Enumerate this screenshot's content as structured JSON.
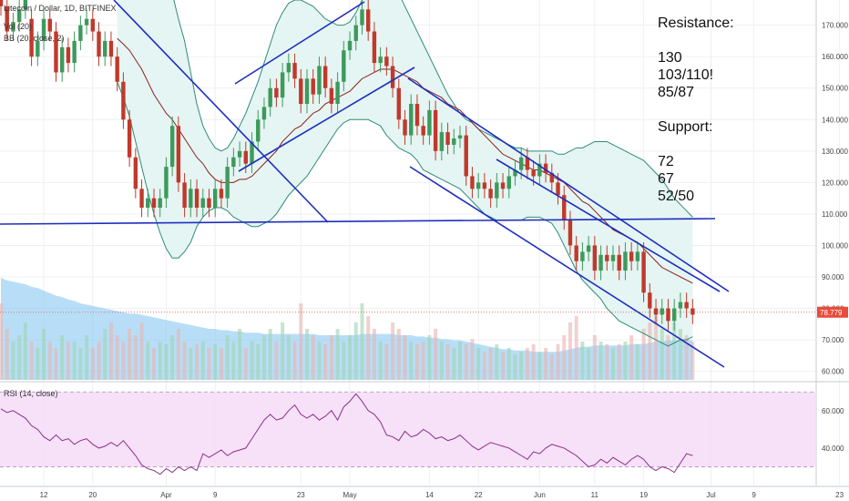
{
  "header": {
    "symbol_line": "Litecoin / Dollar, 1D, BITFINEX",
    "vol_label": "Vol (20)",
    "bb_label": "BB (20, close, 2)",
    "rsi_label": "RSI (14, close)"
  },
  "annotations": {
    "lines": [
      "Resistance:",
      "",
      "130",
      "103/110!",
      "85/87",
      "",
      "Support:",
      "",
      "72",
      "67",
      "52/50"
    ]
  },
  "colors": {
    "up": "#3d9a5c",
    "down": "#c0392b",
    "trendline": "#1f2fbf",
    "bb_band": "#2e8b7a",
    "bb_fill": "#e2f4f2",
    "sma": "#8b2020",
    "volume": "#7ec3f0",
    "rsi_line": "#8b2f8b",
    "rsi_fill": "#f5dcf7",
    "price_tag": "#e74c3c"
  },
  "chart_data": {
    "type": "candlestick",
    "price_axis": {
      "ticks": [
        60,
        70,
        80,
        90,
        100,
        110,
        120,
        130,
        140,
        150,
        160,
        170
      ],
      "tick_labels": [
        "60.000",
        "70.000",
        "80.000",
        "90.000",
        "100.000",
        "110.000",
        "120.000",
        "130.000",
        "140.000",
        "150.000",
        "160.000",
        "170.000"
      ],
      "range": [
        57,
        178
      ]
    },
    "current_price": 78.779,
    "current_price_label": "78.779",
    "x_labels": [
      {
        "day": 7,
        "text": "12"
      },
      {
        "day": 15,
        "text": "20"
      },
      {
        "day": 27,
        "text": "Apr"
      },
      {
        "day": 35,
        "text": "9"
      },
      {
        "day": 49,
        "text": "23"
      },
      {
        "day": 57,
        "text": "May"
      },
      {
        "day": 70,
        "text": "14"
      },
      {
        "day": 78,
        "text": "22"
      },
      {
        "day": 88,
        "text": "Jun"
      },
      {
        "day": 97,
        "text": "11"
      },
      {
        "day": 105,
        "text": "19"
      },
      {
        "day": 116,
        "text": "Jul"
      },
      {
        "day": 123,
        "text": "9"
      },
      {
        "day": 137,
        "text": "23"
      }
    ],
    "closes": [
      176,
      168,
      171,
      175,
      178,
      160,
      165,
      172,
      168,
      155,
      163,
      158,
      165,
      170,
      172,
      168,
      160,
      165,
      160,
      152,
      140,
      128,
      118,
      112,
      115,
      112,
      115,
      125,
      138,
      120,
      112,
      118,
      112,
      115,
      112,
      118,
      115,
      125,
      128,
      130,
      126,
      133,
      140,
      144,
      150,
      147,
      155,
      158,
      153,
      145,
      153,
      148,
      157,
      150,
      145,
      152,
      162,
      165,
      170,
      175,
      168,
      158,
      160,
      157,
      150,
      140,
      135,
      145,
      138,
      135,
      143,
      130,
      136,
      132,
      134,
      135,
      122,
      118,
      120,
      118,
      115,
      120,
      118,
      122,
      124,
      128,
      124,
      122,
      126,
      123,
      120,
      116,
      108,
      100,
      95,
      98,
      100,
      92,
      97,
      95,
      97,
      92,
      98,
      95,
      98,
      85,
      80,
      78,
      80,
      76,
      80,
      82,
      80,
      78
    ],
    "opens": [
      178,
      176,
      168,
      171,
      175,
      172,
      160,
      165,
      172,
      168,
      155,
      163,
      158,
      165,
      170,
      172,
      168,
      160,
      165,
      160,
      152,
      140,
      128,
      118,
      112,
      115,
      112,
      115,
      125,
      138,
      120,
      112,
      118,
      112,
      115,
      112,
      118,
      115,
      125,
      128,
      130,
      126,
      133,
      140,
      144,
      150,
      147,
      155,
      158,
      153,
      145,
      153,
      148,
      157,
      150,
      145,
      152,
      162,
      165,
      170,
      175,
      168,
      158,
      160,
      157,
      150,
      140,
      135,
      145,
      138,
      135,
      143,
      130,
      136,
      132,
      134,
      135,
      122,
      118,
      120,
      118,
      115,
      120,
      118,
      122,
      124,
      128,
      124,
      122,
      126,
      123,
      120,
      116,
      108,
      100,
      95,
      98,
      100,
      92,
      97,
      95,
      97,
      92,
      98,
      95,
      98,
      85,
      80,
      78,
      80,
      76,
      80,
      82,
      80
    ],
    "volumes": [
      60,
      40,
      30,
      35,
      45,
      30,
      25,
      40,
      30,
      25,
      35,
      30,
      30,
      25,
      35,
      25,
      30,
      40,
      45,
      35,
      30,
      40,
      35,
      45,
      30,
      25,
      30,
      28,
      35,
      40,
      30,
      25,
      28,
      30,
      25,
      28,
      25,
      35,
      30,
      40,
      25,
      30,
      28,
      35,
      40,
      30,
      45,
      35,
      30,
      60,
      40,
      35,
      30,
      28,
      35,
      40,
      30,
      35,
      45,
      60,
      50,
      40,
      30,
      28,
      45,
      40,
      35,
      30,
      28,
      30,
      35,
      40,
      30,
      28,
      25,
      30,
      28,
      32,
      25,
      22,
      25,
      28,
      22,
      25,
      20,
      22,
      25,
      28,
      22,
      25,
      20,
      28,
      35,
      45,
      50,
      30,
      25,
      35,
      30,
      28,
      25,
      28,
      30,
      35,
      28,
      40,
      45,
      50,
      40,
      35,
      45,
      40,
      35,
      30
    ],
    "sma20": [
      null,
      null,
      null,
      null,
      null,
      null,
      null,
      null,
      null,
      null,
      null,
      null,
      null,
      null,
      null,
      null,
      null,
      null,
      null,
      165.8,
      164,
      162,
      159,
      156,
      152,
      148,
      145,
      142,
      140,
      137,
      134,
      131,
      128,
      126,
      123,
      121,
      120,
      120,
      120,
      121,
      121,
      122,
      124,
      126,
      128,
      130,
      133,
      135,
      137,
      138,
      140,
      142,
      143,
      145,
      146,
      147,
      148,
      149,
      151,
      153,
      154,
      155,
      156,
      156,
      156,
      155,
      154,
      153,
      152,
      150,
      149,
      148,
      147,
      145,
      144,
      143,
      141,
      139,
      137,
      135,
      133,
      131,
      129,
      128,
      127,
      126,
      125,
      124,
      124,
      123,
      122,
      121,
      120,
      118,
      116,
      114,
      113,
      111,
      109,
      107,
      105,
      104,
      103,
      102,
      101,
      99,
      97,
      95,
      93,
      92,
      91,
      90,
      89,
      88
    ],
    "bb_upper": [
      null,
      null,
      null,
      null,
      null,
      null,
      null,
      null,
      null,
      null,
      null,
      null,
      null,
      null,
      null,
      null,
      null,
      null,
      null,
      180,
      181,
      183,
      185,
      187,
      188,
      188,
      187,
      185,
      180,
      172,
      165,
      155,
      145,
      138,
      134,
      131,
      130,
      131,
      134,
      138,
      142,
      147,
      152,
      158,
      164,
      170,
      174,
      177,
      178,
      178,
      177,
      176,
      174,
      172,
      171,
      170,
      170,
      171,
      174,
      178,
      181,
      183,
      184,
      184,
      183,
      180,
      176,
      172,
      168,
      164,
      160,
      156,
      152,
      148,
      145,
      142,
      140,
      139,
      137,
      136,
      135,
      134,
      133,
      132,
      131,
      131,
      130,
      130,
      130,
      130,
      130,
      129,
      129,
      130,
      131,
      131,
      132,
      133,
      133,
      133,
      132,
      131,
      130,
      129,
      128,
      127,
      125,
      123,
      121,
      118,
      115,
      113,
      111,
      109
    ],
    "bb_lower": [
      null,
      null,
      null,
      null,
      null,
      null,
      null,
      null,
      null,
      null,
      null,
      null,
      null,
      null,
      null,
      null,
      null,
      null,
      null,
      152,
      147,
      141,
      133,
      125,
      117,
      110,
      104,
      99,
      96,
      96,
      98,
      101,
      106,
      109,
      111,
      112,
      112,
      111,
      109,
      108,
      107,
      106,
      106,
      107,
      108,
      110,
      113,
      116,
      118,
      120,
      122,
      125,
      128,
      131,
      134,
      137,
      139,
      140,
      140,
      140,
      140,
      139,
      138,
      135,
      133,
      131,
      130,
      129,
      127,
      124,
      123,
      122,
      121,
      120,
      119,
      118,
      116,
      114,
      112,
      110,
      109,
      108,
      108,
      108,
      108,
      108,
      109,
      109,
      109,
      108,
      107,
      104,
      100,
      96,
      92,
      89,
      87,
      85,
      83,
      80,
      78,
      76,
      75,
      74,
      73,
      72,
      71,
      70,
      69,
      68,
      69,
      70,
      70,
      71
    ],
    "volume_ma": [
      80,
      78,
      77,
      76,
      75,
      73,
      72,
      70,
      68,
      66,
      65,
      63,
      62,
      60,
      59,
      58,
      57,
      56,
      55,
      54,
      53,
      52,
      52,
      51,
      50,
      49,
      48,
      47,
      46,
      45,
      44,
      43,
      42,
      41,
      40,
      40,
      39,
      39,
      38,
      38,
      37,
      37,
      37,
      36,
      36,
      36,
      36,
      36,
      36,
      36,
      36,
      36,
      35,
      35,
      35,
      35,
      35,
      35,
      35,
      36,
      36,
      36,
      36,
      36,
      36,
      35,
      35,
      35,
      34,
      34,
      33,
      33,
      32,
      32,
      31,
      31,
      30,
      29,
      28,
      27,
      26,
      25,
      24,
      24,
      23,
      23,
      23,
      22,
      22,
      22,
      22,
      22,
      23,
      24,
      25,
      26,
      26,
      27,
      27,
      27,
      27,
      27,
      27,
      28,
      28,
      28,
      29,
      30,
      30,
      31,
      31,
      31,
      32,
      31
    ],
    "rsi": [
      61,
      59,
      60,
      58,
      56,
      52,
      50,
      46,
      44,
      47,
      44,
      45,
      42,
      44,
      45,
      42,
      40,
      41,
      43,
      41,
      44,
      40,
      36,
      31,
      29,
      28,
      26,
      29,
      27,
      30,
      28,
      30,
      28,
      37,
      35,
      37,
      39,
      36,
      38,
      39,
      40,
      45,
      50,
      55,
      58,
      55,
      56,
      60,
      63,
      58,
      56,
      58,
      55,
      57,
      60,
      55,
      62,
      65,
      69,
      65,
      60,
      58,
      54,
      47,
      46,
      44,
      49,
      46,
      47,
      50,
      48,
      45,
      46,
      44,
      45,
      47,
      44,
      41,
      39,
      41,
      43,
      42,
      41,
      40,
      38,
      36,
      34,
      38,
      37,
      40,
      42,
      41,
      40,
      38,
      36,
      33,
      30,
      31,
      34,
      32,
      35,
      33,
      31,
      34,
      36,
      34,
      30,
      28,
      30,
      29,
      27,
      32,
      37,
      36
    ],
    "rsi_axis": {
      "ticks": [
        40,
        60
      ],
      "tick_labels": [
        "40.000",
        "60.000"
      ],
      "band": [
        30,
        70
      ]
    }
  }
}
